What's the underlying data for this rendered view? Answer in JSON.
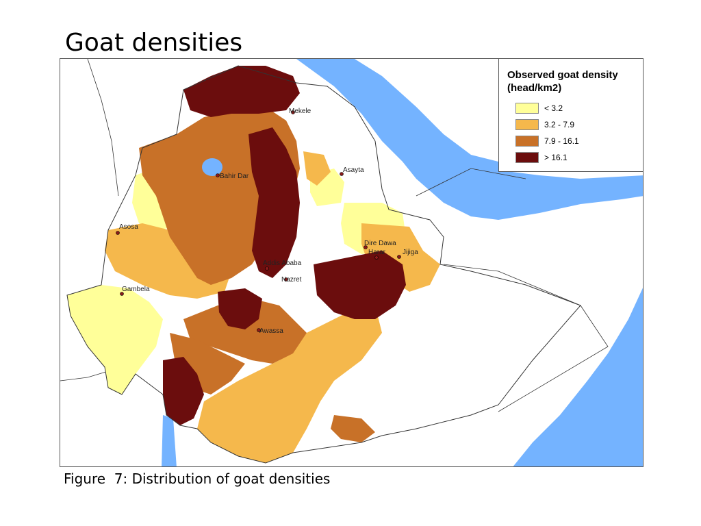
{
  "title": "Goat densities",
  "caption": "Figure  7: Distribution of goat densities",
  "legend": {
    "title": "Observed goat density (head/km2)",
    "items": [
      {
        "label": "< 3.2",
        "color": "#ffff99"
      },
      {
        "label": "3.2 - 7.9",
        "color": "#f5b84c"
      },
      {
        "label": "7.9 - 16.1",
        "color": "#c87128"
      },
      {
        "label": "> 16.1",
        "color": "#6b0d0d"
      }
    ]
  },
  "colors": {
    "water": "#74b3ff",
    "no_data": "#ffffff",
    "border": "#333333"
  },
  "cities": [
    {
      "name": "Mekele"
    },
    {
      "name": "Bahir Dar"
    },
    {
      "name": "Asayta"
    },
    {
      "name": "Asosa"
    },
    {
      "name": "Dire Dawa"
    },
    {
      "name": "Harar"
    },
    {
      "name": "Jijiga"
    },
    {
      "name": "Addis Ababa"
    },
    {
      "name": "Nazret"
    },
    {
      "name": "Gambela"
    },
    {
      "name": "Awassa"
    }
  ]
}
